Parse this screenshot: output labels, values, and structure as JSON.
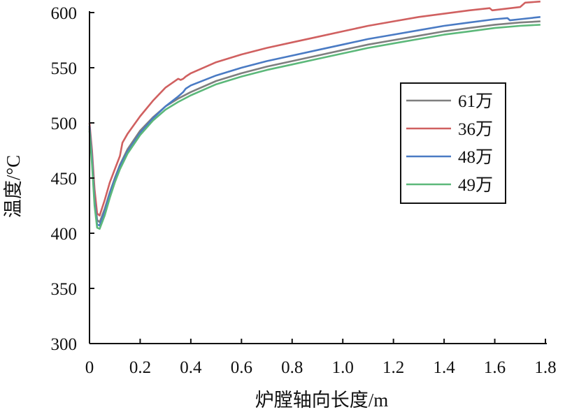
{
  "chart_data": {
    "type": "line",
    "xlabel": "炉膛轴向长度/m",
    "ylabel": "温度/°C",
    "xlim": [
      0,
      1.8
    ],
    "ylim": [
      300,
      600
    ],
    "xticks": [
      0,
      0.2,
      0.4,
      0.6,
      0.8,
      1.0,
      1.2,
      1.4,
      1.6,
      1.8
    ],
    "xtick_labels": [
      "0",
      "0.2",
      "0.4",
      "0.6",
      "0.8",
      "1.0",
      "1.2",
      "1.4",
      "1.6",
      "1.8"
    ],
    "yticks": [
      300,
      350,
      400,
      450,
      500,
      550,
      600
    ],
    "ytick_labels": [
      "300",
      "350",
      "400",
      "450",
      "500",
      "550",
      "600"
    ],
    "grid": false,
    "legend_position": "right-center",
    "series": [
      {
        "name": "61万",
        "color": "#7f7f7f",
        "x": [
          0,
          0.01,
          0.02,
          0.03,
          0.04,
          0.06,
          0.08,
          0.1,
          0.12,
          0.15,
          0.2,
          0.25,
          0.3,
          0.35,
          0.4,
          0.5,
          0.6,
          0.7,
          0.8,
          0.9,
          1.0,
          1.1,
          1.2,
          1.3,
          1.4,
          1.5,
          1.6,
          1.7,
          1.78
        ],
        "y": [
          495,
          470,
          435,
          412,
          410,
          422,
          437,
          450,
          462,
          476,
          493,
          505,
          515,
          522,
          528,
          538,
          545,
          551,
          556,
          561,
          566,
          571,
          575,
          579,
          583,
          586,
          589,
          591,
          592
        ]
      },
      {
        "name": "36万",
        "color": "#d06060",
        "x": [
          0,
          0.01,
          0.02,
          0.03,
          0.04,
          0.06,
          0.08,
          0.1,
          0.12,
          0.13,
          0.15,
          0.2,
          0.25,
          0.3,
          0.35,
          0.36,
          0.37,
          0.38,
          0.4,
          0.5,
          0.6,
          0.7,
          0.8,
          0.9,
          1.0,
          1.1,
          1.2,
          1.3,
          1.4,
          1.5,
          1.58,
          1.59,
          1.7,
          1.72,
          1.78
        ],
        "y": [
          500,
          475,
          440,
          418,
          416,
          430,
          446,
          458,
          470,
          482,
          490,
          506,
          520,
          532,
          540,
          539,
          540,
          542,
          545,
          555,
          562,
          568,
          573,
          578,
          583,
          588,
          592,
          596,
          599,
          602,
          604,
          602,
          605,
          609,
          610
        ]
      },
      {
        "name": "48万",
        "color": "#4a7bc4",
        "x": [
          0,
          0.01,
          0.02,
          0.03,
          0.04,
          0.06,
          0.08,
          0.1,
          0.12,
          0.15,
          0.2,
          0.25,
          0.3,
          0.35,
          0.37,
          0.38,
          0.4,
          0.5,
          0.6,
          0.7,
          0.8,
          0.9,
          1.0,
          1.1,
          1.2,
          1.3,
          1.4,
          1.5,
          1.6,
          1.65,
          1.66,
          1.7,
          1.78
        ],
        "y": [
          497,
          468,
          430,
          408,
          407,
          420,
          436,
          449,
          461,
          474,
          491,
          504,
          515,
          524,
          528,
          531,
          534,
          543,
          550,
          556,
          561,
          566,
          571,
          576,
          580,
          584,
          588,
          591,
          594,
          595,
          593,
          594,
          596
        ]
      },
      {
        "name": "49万",
        "color": "#5cb87a",
        "x": [
          0,
          0.01,
          0.02,
          0.03,
          0.04,
          0.06,
          0.08,
          0.1,
          0.12,
          0.15,
          0.2,
          0.25,
          0.3,
          0.35,
          0.4,
          0.5,
          0.6,
          0.7,
          0.8,
          0.9,
          1.0,
          1.1,
          1.2,
          1.3,
          1.4,
          1.5,
          1.6,
          1.7,
          1.78
        ],
        "y": [
          493,
          462,
          425,
          405,
          404,
          416,
          432,
          446,
          458,
          472,
          489,
          502,
          512,
          519,
          525,
          535,
          542,
          548,
          553,
          558,
          563,
          568,
          572,
          576,
          580,
          583,
          586,
          588,
          589
        ]
      }
    ]
  }
}
